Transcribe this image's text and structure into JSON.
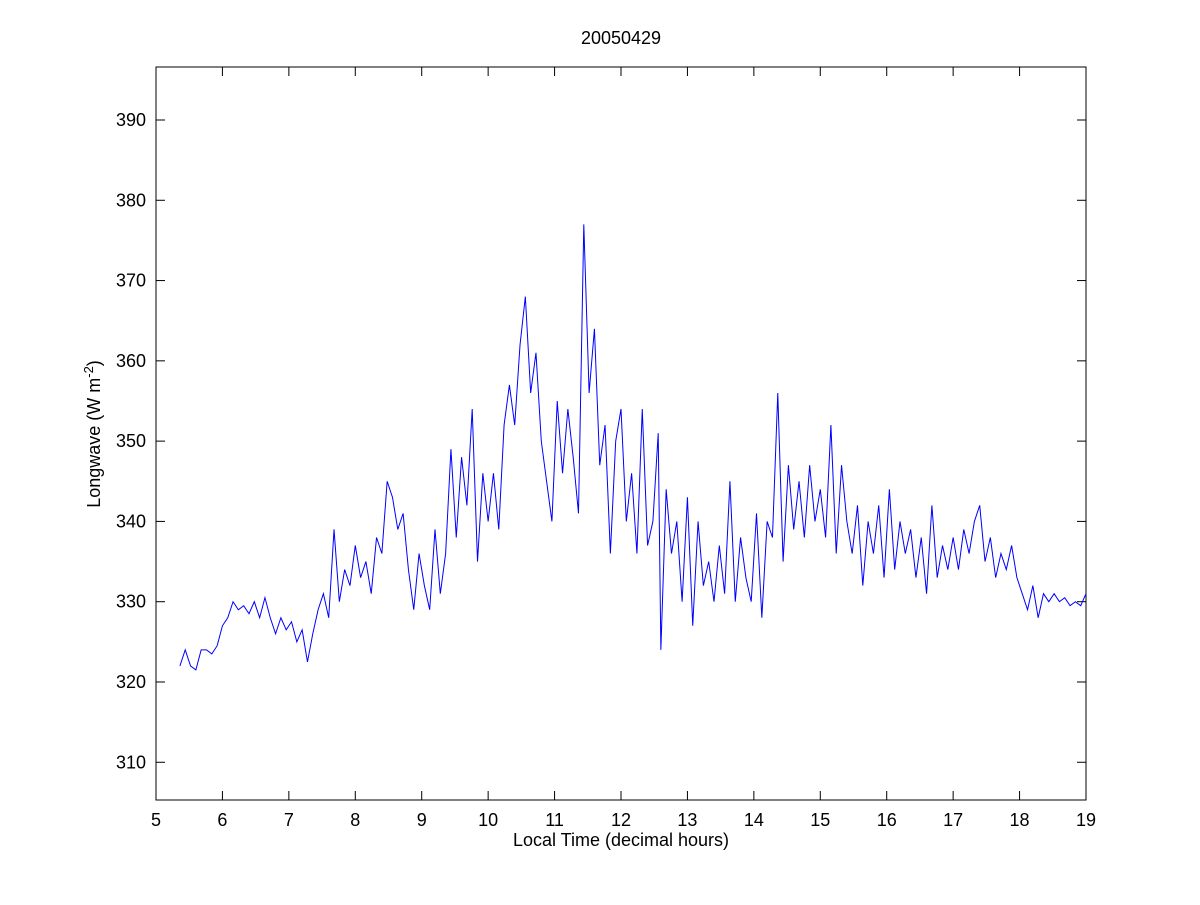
{
  "chart_data": {
    "type": "line",
    "title": "20050429",
    "xlabel": "Local Time (decimal hours)",
    "ylabel": {
      "text": "Longwave (W m",
      "sup": "-2",
      "suffix": ")"
    },
    "color": "#0000ff",
    "xlim": [
      5,
      19
    ],
    "xticks": [
      5,
      6,
      7,
      8,
      9,
      10,
      11,
      12,
      13,
      14,
      15,
      16,
      17,
      18,
      19
    ],
    "ylim": [
      305.3,
      396.6
    ],
    "yticks": [
      310,
      320,
      330,
      340,
      350,
      360,
      370,
      380,
      390
    ],
    "x": [
      5.36,
      5.44,
      5.52,
      5.6,
      5.68,
      5.76,
      5.84,
      5.92,
      6.0,
      6.08,
      6.16,
      6.24,
      6.32,
      6.4,
      6.48,
      6.56,
      6.64,
      6.72,
      6.8,
      6.88,
      6.96,
      7.04,
      7.12,
      7.2,
      7.28,
      7.36,
      7.44,
      7.52,
      7.6,
      7.68,
      7.76,
      7.84,
      7.92,
      8.0,
      8.08,
      8.16,
      8.24,
      8.32,
      8.4,
      8.48,
      8.56,
      8.64,
      8.72,
      8.8,
      8.88,
      8.96,
      9.04,
      9.12,
      9.2,
      9.28,
      9.36,
      9.44,
      9.52,
      9.6,
      9.68,
      9.76,
      9.84,
      9.92,
      10.0,
      10.08,
      10.16,
      10.24,
      10.32,
      10.4,
      10.48,
      10.56,
      10.64,
      10.72,
      10.8,
      10.88,
      10.96,
      11.04,
      11.12,
      11.2,
      11.28,
      11.36,
      11.44,
      11.52,
      11.6,
      11.68,
      11.76,
      11.84,
      11.92,
      12.0,
      12.08,
      12.16,
      12.24,
      12.32,
      12.4,
      12.48,
      12.56,
      12.6,
      12.68,
      12.76,
      12.84,
      12.92,
      13.0,
      13.08,
      13.16,
      13.24,
      13.32,
      13.4,
      13.48,
      13.56,
      13.64,
      13.72,
      13.8,
      13.88,
      13.96,
      14.04,
      14.12,
      14.2,
      14.28,
      14.36,
      14.44,
      14.52,
      14.6,
      14.68,
      14.76,
      14.84,
      14.92,
      15.0,
      15.08,
      15.16,
      15.24,
      15.32,
      15.4,
      15.48,
      15.56,
      15.64,
      15.72,
      15.8,
      15.88,
      15.96,
      16.04,
      16.12,
      16.2,
      16.28,
      16.36,
      16.44,
      16.52,
      16.6,
      16.68,
      16.76,
      16.84,
      16.92,
      17.0,
      17.08,
      17.16,
      17.24,
      17.32,
      17.4,
      17.48,
      17.56,
      17.64,
      17.72,
      17.8,
      17.88,
      17.96,
      18.04,
      18.12,
      18.2,
      18.28,
      18.36,
      18.44,
      18.52,
      18.6,
      18.68,
      18.76,
      18.84,
      18.92,
      19.0
    ],
    "values": [
      322,
      324,
      322,
      321.5,
      324,
      324,
      323.5,
      324.5,
      327,
      328,
      330,
      329,
      329.5,
      328.5,
      330,
      328,
      330.5,
      328,
      326,
      328,
      326.5,
      327.5,
      325,
      326.5,
      322.5,
      326,
      329,
      331,
      328,
      339,
      330,
      334,
      332,
      337,
      333,
      335,
      331,
      338,
      336,
      345,
      343,
      339,
      341,
      334,
      329,
      336,
      332,
      329,
      339,
      331,
      336,
      349,
      338,
      348,
      342,
      354,
      335,
      346,
      340,
      346,
      339,
      352,
      357,
      352,
      362,
      368,
      356,
      361,
      350,
      345,
      340,
      355,
      346,
      354,
      348,
      341,
      377,
      356,
      364,
      347,
      352,
      336,
      350,
      354,
      340,
      346,
      336,
      354,
      337,
      340,
      351,
      324,
      344,
      336,
      340,
      330,
      343,
      327,
      340,
      332,
      335,
      330,
      337,
      331,
      345,
      330,
      338,
      333,
      330,
      341,
      328,
      340,
      338,
      356,
      335,
      347,
      339,
      345,
      338,
      347,
      340,
      344,
      338,
      352,
      336,
      347,
      340,
      336,
      342,
      332,
      340,
      336,
      342,
      333,
      344,
      334,
      340,
      336,
      339,
      333,
      338,
      331,
      342,
      333,
      337,
      334,
      338,
      334,
      339,
      336,
      340,
      342,
      335,
      338,
      333,
      336,
      334,
      337,
      333,
      331,
      329,
      332,
      328,
      331,
      330,
      331,
      330,
      330.5,
      329.5,
      330,
      329.5,
      331
    ]
  }
}
